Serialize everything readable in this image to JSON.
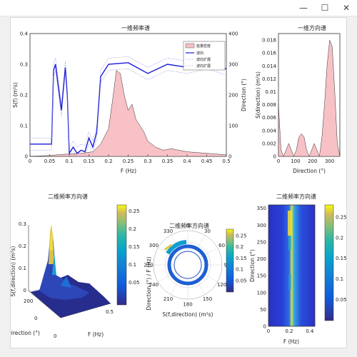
{
  "window": {
    "minimize": "—",
    "maximize": "☐",
    "close": "✕"
  },
  "fig1": {
    "title": "一维频率谱",
    "xlabel": "F (Hz)",
    "ylabel_left": "S(f) (m²s)",
    "ylabel_right": "Direction (°)",
    "xticks": [
      "0",
      "0.05",
      "0.1",
      "0.15",
      "0.2",
      "0.25",
      "0.3",
      "0.35",
      "0.4",
      "0.45",
      "0.5"
    ],
    "yticks_left": [
      "0",
      "0.1",
      "0.2",
      "0.3",
      "0.4"
    ],
    "yticks_right": [
      "0",
      "100",
      "200",
      "300",
      "400"
    ],
    "legend": [
      "能量密度",
      "波向",
      "波向扩展",
      "波向扩展"
    ]
  },
  "fig2": {
    "title": "一维方向谱",
    "xlabel": "Direction (°)",
    "ylabel": "S(direction) (m²s)",
    "xticks": [
      "0",
      "100",
      "200",
      "300"
    ],
    "yticks": [
      "0",
      "0.002",
      "0.004",
      "0.006",
      "0.008",
      "0.01",
      "0.012",
      "0.014",
      "0.016",
      "0.018"
    ]
  },
  "fig3": {
    "title": "二维频率方向谱",
    "zlabel": "S(f,direction) (m²s)",
    "xlabel": "F (Hz)",
    "ylabel": "Direction (°)",
    "zticks": [
      "0",
      "0.1",
      "0.2",
      "0.3"
    ],
    "yticks": [
      "0",
      "200"
    ],
    "xticks": [
      "0",
      "0.5"
    ],
    "colorbar": [
      "0.05",
      "0.1",
      "0.15",
      "0.2",
      "0.25"
    ]
  },
  "fig4": {
    "title": "二维频率方向谱",
    "ylabel": "Direction (°) / F (Hz)",
    "xlabel": "S(f,direction) (m²s)",
    "angles": [
      "0",
      "30",
      "60",
      "90",
      "120",
      "150",
      "180",
      "210",
      "240",
      "270",
      "300",
      "330"
    ],
    "colorbar": [
      "0.05",
      "0.1",
      "0.15",
      "0.2",
      "0.25"
    ]
  },
  "fig5": {
    "title": "二维频率方向谱",
    "xlabel": "F (Hz)",
    "ylabel": "Direction (°)",
    "xticks": [
      "0",
      "0.2",
      "0.4"
    ],
    "yticks": [
      "0",
      "50",
      "100",
      "150",
      "200",
      "250",
      "300",
      "350"
    ],
    "colorbar": [
      "0.05",
      "0.1",
      "0.15",
      "0.2",
      "0.25"
    ]
  },
  "chart_data": [
    {
      "type": "area",
      "title": "一维频率谱",
      "xlabel": "F (Hz)",
      "ylabel": "S(f) (m²s)",
      "xlim": [
        0,
        0.5
      ],
      "ylim": [
        0,
        0.4
      ],
      "y2lim": [
        0,
        400
      ],
      "series": [
        {
          "name": "能量密度",
          "x": [
            0,
            0.05,
            0.07,
            0.1,
            0.13,
            0.16,
            0.18,
            0.2,
            0.21,
            0.22,
            0.23,
            0.24,
            0.25,
            0.26,
            0.27,
            0.28,
            0.29,
            0.3,
            0.32,
            0.34,
            0.36,
            0.4,
            0.45,
            0.5
          ],
          "values": [
            0,
            0.003,
            0.005,
            0.008,
            0.01,
            0.015,
            0.04,
            0.09,
            0.18,
            0.28,
            0.27,
            0.2,
            0.15,
            0.17,
            0.12,
            0.1,
            0.08,
            0.05,
            0.03,
            0.02,
            0.025,
            0.015,
            0.01,
            0.005
          ]
        },
        {
          "name": "波向",
          "x": [
            0,
            0.04,
            0.055,
            0.06,
            0.065,
            0.07,
            0.08,
            0.09,
            0.095,
            0.1,
            0.11,
            0.12,
            0.13,
            0.14,
            0.15,
            0.16,
            0.17,
            0.18,
            0.2,
            0.25,
            0.3,
            0.35,
            0.4,
            0.45,
            0.5
          ],
          "values": [
            40,
            40,
            40,
            280,
            300,
            250,
            150,
            290,
            200,
            10,
            30,
            10,
            20,
            15,
            60,
            30,
            80,
            260,
            300,
            305,
            270,
            300,
            290,
            305,
            285
          ]
        }
      ]
    },
    {
      "type": "area",
      "title": "一维方向谱",
      "xlabel": "Direction (°)",
      "ylabel": "S(direction) (m²s)",
      "xlim": [
        0,
        360
      ],
      "ylim": [
        0,
        0.019
      ],
      "x": [
        0,
        15,
        30,
        45,
        60,
        75,
        90,
        105,
        120,
        135,
        150,
        165,
        180,
        195,
        210,
        225,
        240,
        255,
        270,
        285,
        300,
        315,
        330,
        345,
        360
      ],
      "values": [
        0.008,
        0.001,
        0,
        0.001,
        0.002,
        0.001,
        0,
        0.001,
        0.003,
        0.0035,
        0.003,
        0.001,
        0,
        0.001,
        0.002,
        0.001,
        0,
        0.003,
        0.008,
        0.014,
        0.018,
        0.017,
        0.01,
        0.002,
        0
      ]
    }
  ]
}
